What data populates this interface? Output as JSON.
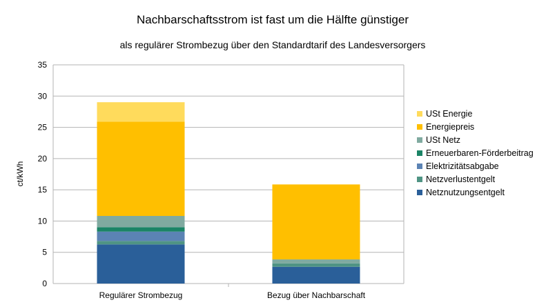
{
  "chart_data": {
    "type": "bar",
    "stacked": true,
    "title": "Nachbarschaftsstrom ist fast um die Hälfte günstiger",
    "subtitle": "als regulärer Strombezug über den Standardtarif des Landesversorgers",
    "ylabel": "ct/kWh",
    "xlabel": "",
    "ylim": [
      0,
      35
    ],
    "yticks": [
      0,
      5,
      10,
      15,
      20,
      25,
      30,
      35
    ],
    "grid": true,
    "legend_position": "right",
    "categories": [
      "Regulärer Strombezug",
      "Bezug über Nachbarschaft"
    ],
    "series": [
      {
        "name": "Netznutzungsentgelt",
        "color": "#2a5f99",
        "values": [
          6.26,
          2.68
        ]
      },
      {
        "name": "Netzverlustentgelt",
        "color": "#4f9484",
        "values": [
          0.55,
          0.55
        ]
      },
      {
        "name": "Elektrizitätsabgabe",
        "color": "#5b83b4",
        "values": [
          1.5,
          0
        ]
      },
      {
        "name": "Erneuerbaren-Förderbeitrag",
        "color": "#1b8466",
        "values": [
          0.71,
          0
        ]
      },
      {
        "name": "USt Netz",
        "color": "#80aaa0",
        "values": [
          1.8,
          0.63
        ]
      },
      {
        "name": "Energiepreis",
        "color": "#ffbf00",
        "values": [
          15.1,
          12.0
        ]
      },
      {
        "name": "USt Energie",
        "color": "#ffdb5c",
        "values": [
          3.1,
          0
        ]
      }
    ]
  }
}
